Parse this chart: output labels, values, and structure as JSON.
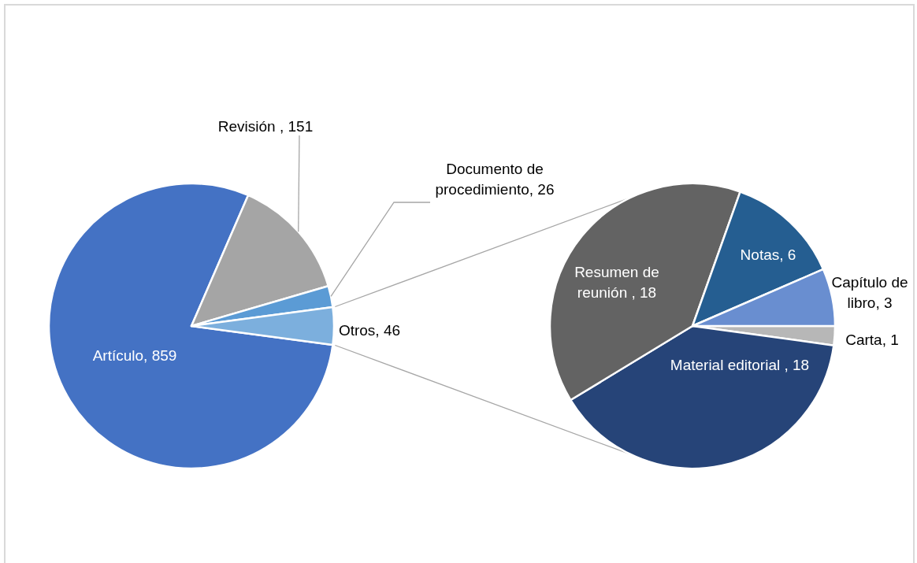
{
  "chart_data": [
    {
      "type": "pie",
      "categories": [
        "Artículo",
        "Revisión ",
        "Documento de procedimiento",
        "Otros"
      ],
      "values": [
        859,
        151,
        26,
        46
      ],
      "colors": [
        "#4472c4",
        "#a5a5a5",
        "#5b9bd5",
        "#7cafdd"
      ],
      "value_labels": [
        ", 859",
        ", 151",
        ", 26",
        ", 46"
      ]
    },
    {
      "type": "pie",
      "categories": [
        "Carta",
        "Material editorial ",
        "Resumen de reunión ",
        "Notas",
        "Capítulo de libro"
      ],
      "values": [
        1,
        18,
        18,
        6,
        3
      ],
      "colors": [
        "#b7b7b7",
        "#264478",
        "#636363",
        "#255e91",
        "#698ed0"
      ],
      "value_labels": [
        ", 1",
        ", 18",
        ", 18",
        ", 6",
        ", 3"
      ]
    }
  ]
}
